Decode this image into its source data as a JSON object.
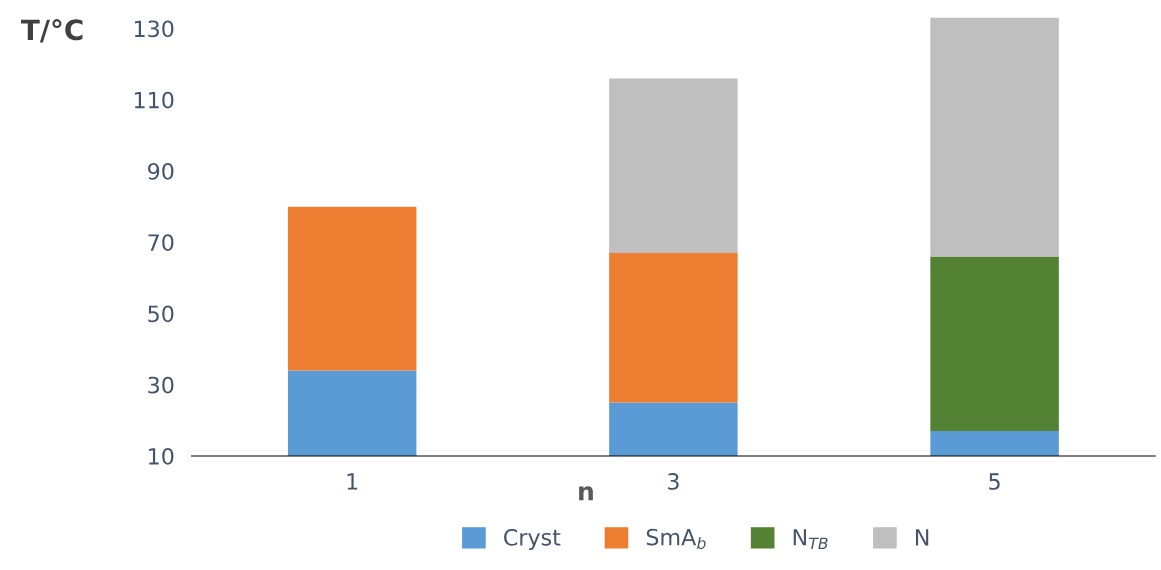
{
  "chart_data": {
    "type": "bar",
    "stacked": true,
    "xlabel": "n",
    "ylabel": "T/°C",
    "categories": [
      "1",
      "3",
      "5"
    ],
    "series": [
      {
        "name": "Cryst",
        "color": "#5b9bd5",
        "values": [
          34,
          25,
          17
        ]
      },
      {
        "name": "SmA$_{b}$",
        "color": "#ed7d31",
        "values": [
          46,
          42,
          null
        ]
      },
      {
        "name": "N$_{TB}$",
        "color": "#548235",
        "values": [
          null,
          null,
          49
        ]
      },
      {
        "name": "N",
        "color": "#bfbfbf",
        "values": [
          null,
          49,
          67
        ]
      }
    ],
    "ylim": [
      10,
      134
    ],
    "yticks": [
      10,
      30,
      50,
      70,
      90,
      110,
      130
    ],
    "grid": false,
    "legend": "bottom"
  }
}
